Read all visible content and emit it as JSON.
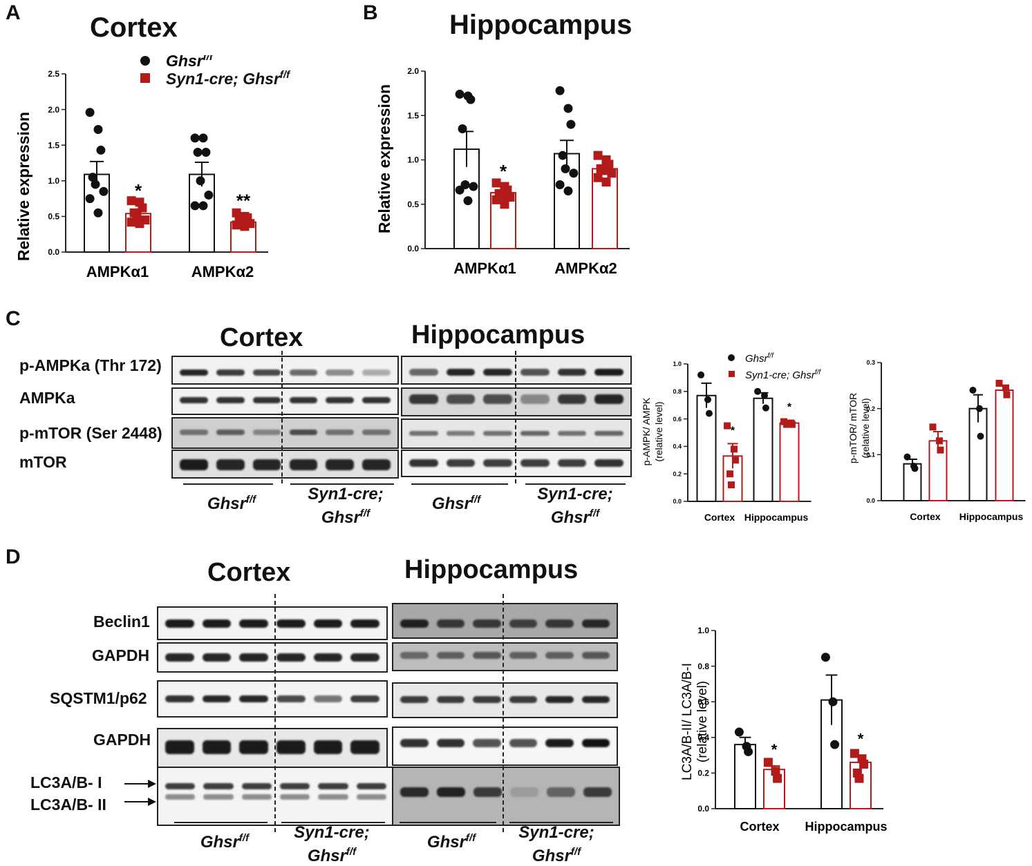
{
  "panels": {
    "a": "A",
    "b": "B",
    "c": "C",
    "d": "D"
  },
  "colors": {
    "ctrl": "#111111",
    "ko": "#b31b1b"
  },
  "chart_data": [
    {
      "type": "bar",
      "title": "Cortex",
      "ylabel": "Relative expression",
      "ylim": [
        0,
        2.5
      ],
      "yticks": [
        "0.0",
        "0.5",
        "1.0",
        "1.5",
        "2.0",
        "2.5"
      ],
      "categories": [
        "AMPKα1",
        "AMPKα2"
      ],
      "legend": [
        "Ghsr",
        "Syn1-cre; Ghsr"
      ],
      "legend_sup": "f/f",
      "series": [
        {
          "name": "Ghsr",
          "values": [
            1.09,
            1.09
          ],
          "sem": [
            0.18,
            0.17
          ],
          "points": [
            [
              1.96,
              1.72,
              1.43,
              1.05,
              0.95,
              0.85,
              0.75,
              0.55
            ],
            [
              1.6,
              1.6,
              1.4,
              1.4,
              1.0,
              0.8,
              0.65,
              0.65
            ]
          ]
        },
        {
          "name": "Syn1-cre; Ghsr",
          "values": [
            0.54,
            0.42
          ],
          "sem": [
            0.06,
            0.04
          ],
          "points": [
            [
              0.72,
              0.7,
              0.62,
              0.55,
              0.5,
              0.45,
              0.42,
              0.4
            ],
            [
              0.55,
              0.5,
              0.48,
              0.45,
              0.42,
              0.4,
              0.38,
              0.36
            ]
          ]
        }
      ],
      "annotations": [
        "*",
        "**"
      ]
    },
    {
      "type": "bar",
      "title": "Hippocampus",
      "ylabel": "Relative expression",
      "ylim": [
        0,
        2.0
      ],
      "yticks": [
        "0.0",
        "0.5",
        "1.0",
        "1.5",
        "2.0"
      ],
      "categories": [
        "AMPKα1",
        "AMPKα2"
      ],
      "series": [
        {
          "name": "Ghsr",
          "values": [
            1.12,
            1.07
          ],
          "sem": [
            0.2,
            0.15
          ],
          "points": [
            [
              1.74,
              1.72,
              1.68,
              1.35,
              0.72,
              0.7,
              0.66,
              0.54
            ],
            [
              1.78,
              1.58,
              1.4,
              1.05,
              0.9,
              0.85,
              0.72,
              0.65
            ]
          ]
        },
        {
          "name": "Syn1-cre; Ghsr",
          "values": [
            0.63,
            0.9
          ],
          "sem": [
            0.03,
            0.04
          ],
          "points": [
            [
              0.74,
              0.7,
              0.66,
              0.62,
              0.6,
              0.58,
              0.55,
              0.5
            ],
            [
              1.05,
              1.0,
              0.95,
              0.9,
              0.88,
              0.85,
              0.8,
              0.75
            ]
          ]
        }
      ],
      "annotations": [
        "*",
        ""
      ]
    },
    {
      "type": "bar",
      "ylabel": "p-AMPK/ AMPK",
      "ylabel2": "(relative level)",
      "ylim": [
        0,
        1.0
      ],
      "yticks": [
        "0.0",
        "0.2",
        "0.4",
        "0.6",
        "0.8",
        "1.0"
      ],
      "categories": [
        "Cortex",
        "Hippocampus"
      ],
      "legend": [
        "Ghsr",
        "Syn1-cre; Ghsr"
      ],
      "legend_sup": "f/f",
      "series": [
        {
          "name": "Ghsr",
          "values": [
            0.77,
            0.75
          ],
          "sem": [
            0.09,
            0.04
          ],
          "points": [
            [
              0.92,
              0.74,
              0.64
            ],
            [
              0.8,
              0.77,
              0.68
            ]
          ]
        },
        {
          "name": "Syn1-cre; Ghsr",
          "values": [
            0.33,
            0.57
          ],
          "sem": [
            0.09,
            0.02
          ],
          "points": [
            [
              0.55,
              0.38,
              0.3,
              0.2,
              0.12
            ],
            [
              0.58,
              0.57,
              0.56,
              0.56
            ]
          ]
        }
      ],
      "annotations": [
        "*",
        "*"
      ]
    },
    {
      "type": "bar",
      "ylabel": "p-mTOR/ mTOR",
      "ylabel2": "(relative level)",
      "ylim": [
        0,
        0.3
      ],
      "yticks": [
        "0.0",
        "0.1",
        "0.2",
        "0.3"
      ],
      "categories": [
        "Cortex",
        "Hippocampus"
      ],
      "series": [
        {
          "name": "Ghsr",
          "values": [
            0.08,
            0.2
          ],
          "sem": [
            0.01,
            0.03
          ],
          "points": [
            [
              0.095,
              0.075,
              0.07
            ],
            [
              0.24,
              0.2,
              0.14
            ]
          ]
        },
        {
          "name": "Syn1-cre; Ghsr",
          "values": [
            0.13,
            0.24
          ],
          "sem": [
            0.02,
            0.01
          ],
          "points": [
            [
              0.16,
              0.13,
              0.11
            ],
            [
              0.255,
              0.245,
              0.23
            ]
          ]
        }
      ],
      "annotations": [
        "",
        ""
      ]
    },
    {
      "type": "bar",
      "ylabel": "LC3A/B-II/ LC3A/B-I",
      "ylabel2": "(relative level)",
      "ylim": [
        0,
        1.0
      ],
      "yticks": [
        "0.0",
        "0.2",
        "0.4",
        "0.6",
        "0.8",
        "1.0"
      ],
      "categories": [
        "Cortex",
        "Hippocampus"
      ],
      "series": [
        {
          "name": "Ghsr",
          "values": [
            0.36,
            0.61
          ],
          "sem": [
            0.04,
            0.14
          ],
          "points": [
            [
              0.43,
              0.35,
              0.32
            ],
            [
              0.85,
              0.6,
              0.36
            ]
          ]
        },
        {
          "name": "Syn1-cre; Ghsr",
          "values": [
            0.22,
            0.26
          ],
          "sem": [
            0.02,
            0.04
          ],
          "points": [
            [
              0.26,
              0.21,
              0.17
            ],
            [
              0.31,
              0.28,
              0.25,
              0.2,
              0.17
            ]
          ]
        }
      ],
      "annotations": [
        "*",
        "*"
      ]
    }
  ],
  "blots_c": {
    "cortex_title": "Cortex",
    "hippo_title": "Hippocampus",
    "rows": [
      "p-AMPKa (Thr 172)",
      "AMPKa",
      "p-mTOR (Ser 2448)",
      "mTOR"
    ],
    "group_ctrl": "Ghsr",
    "group_ctrl_sup": "f/f",
    "group_ko_1": "Syn1-cre;",
    "group_ko_2": "Ghsr",
    "group_ko_sup": "f/f"
  },
  "blots_d": {
    "cortex_title": "Cortex",
    "hippo_title": "Hippocampus",
    "rows": [
      "Beclin1",
      "GAPDH",
      "SQSTM1/p62",
      "GAPDH"
    ],
    "lc3_1": "LC3A/B- I",
    "lc3_2": "LC3A/B- II",
    "group_ctrl": "Ghsr",
    "group_ctrl_sup": "f/f",
    "group_ko_1": "Syn1-cre;",
    "group_ko_2": "Ghsr",
    "group_ko_sup": "f/f"
  }
}
